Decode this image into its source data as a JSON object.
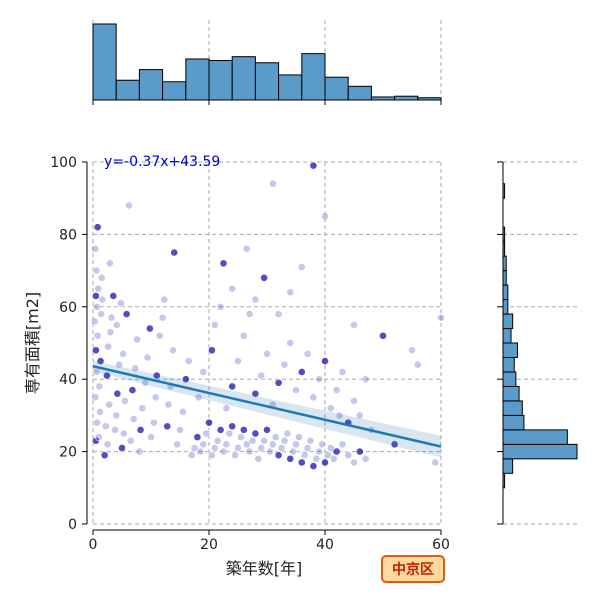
{
  "chart_data": {
    "type": "scatter",
    "xlabel": "築年数[年]",
    "ylabel": "専有面積[m2]",
    "xlim": [
      0,
      60
    ],
    "ylim": [
      0,
      100
    ],
    "xticks": [
      "0",
      "20",
      "40",
      "60"
    ],
    "yticks": [
      "0",
      "20",
      "40",
      "60",
      "80",
      "100"
    ],
    "grid": true,
    "fit": {
      "slope": -0.37,
      "intercept": 43.59,
      "label": "y=-0.37x+43.59"
    },
    "badge": "中京区",
    "marginal_x_hist": {
      "bin_start": 0,
      "bin_width": 4,
      "counts": [
        100,
        26,
        40,
        24,
        54,
        52,
        57,
        49,
        33,
        61,
        30,
        18,
        4,
        5,
        3
      ]
    },
    "marginal_y_hist": {
      "bin_start": 10,
      "bin_width": 4,
      "counts": [
        1,
        6,
        46,
        40,
        13,
        12,
        10,
        8,
        7,
        9,
        5,
        6,
        3,
        3,
        2,
        2,
        1,
        1,
        0,
        0,
        1,
        0,
        0
      ]
    },
    "points": [
      [
        0.5,
        23
      ],
      [
        0.7,
        28
      ],
      [
        0.4,
        35
      ],
      [
        0.6,
        42
      ],
      [
        0.5,
        48
      ],
      [
        0.8,
        52
      ],
      [
        0.3,
        56
      ],
      [
        0.7,
        60
      ],
      [
        0.5,
        63
      ],
      [
        0.9,
        65
      ],
      [
        0.6,
        70
      ],
      [
        0.4,
        76
      ],
      [
        0.8,
        82
      ],
      [
        1,
        24
      ],
      [
        1.2,
        31
      ],
      [
        1.1,
        38
      ],
      [
        1.3,
        45
      ],
      [
        1.4,
        58
      ],
      [
        1.6,
        62
      ],
      [
        1.5,
        68
      ],
      [
        2,
        19
      ],
      [
        2.5,
        22
      ],
      [
        2.2,
        27
      ],
      [
        2.8,
        33
      ],
      [
        2.4,
        41
      ],
      [
        2.6,
        49
      ],
      [
        3,
        53
      ],
      [
        3.2,
        57
      ],
      [
        3.5,
        63
      ],
      [
        2.9,
        72
      ],
      [
        3.8,
        26
      ],
      [
        4,
        30
      ],
      [
        4.2,
        36
      ],
      [
        4.5,
        44
      ],
      [
        4.1,
        55
      ],
      [
        4.8,
        61
      ],
      [
        5,
        21
      ],
      [
        5.3,
        25
      ],
      [
        5.5,
        34
      ],
      [
        5.2,
        47
      ],
      [
        5.8,
        58
      ],
      [
        6.2,
        88
      ],
      [
        6.5,
        23
      ],
      [
        7,
        29
      ],
      [
        6.8,
        37
      ],
      [
        7.3,
        43
      ],
      [
        7.6,
        51
      ],
      [
        8,
        20
      ],
      [
        8.2,
        26
      ],
      [
        8.5,
        32
      ],
      [
        9,
        39
      ],
      [
        9.4,
        46
      ],
      [
        9.8,
        54
      ],
      [
        10,
        24
      ],
      [
        10.5,
        28
      ],
      [
        10.8,
        35
      ],
      [
        11,
        41
      ],
      [
        11.5,
        52
      ],
      [
        12,
        57
      ],
      [
        12.3,
        62
      ],
      [
        12.8,
        27
      ],
      [
        13,
        33
      ],
      [
        13.4,
        38
      ],
      [
        13.8,
        48
      ],
      [
        14,
        75
      ],
      [
        14.5,
        22
      ],
      [
        15,
        26
      ],
      [
        15.5,
        31
      ],
      [
        16,
        40
      ],
      [
        16.5,
        45
      ],
      [
        17,
        19
      ],
      [
        17.5,
        21
      ],
      [
        18,
        24
      ],
      [
        18.5,
        20
      ],
      [
        19,
        22
      ],
      [
        19.5,
        25
      ],
      [
        20,
        28
      ],
      [
        20.5,
        19
      ],
      [
        21,
        21
      ],
      [
        21.5,
        23
      ],
      [
        22,
        26
      ],
      [
        22.5,
        20
      ],
      [
        23,
        22
      ],
      [
        23.5,
        25
      ],
      [
        24,
        27
      ],
      [
        24.5,
        19
      ],
      [
        25,
        21
      ],
      [
        25.5,
        24
      ],
      [
        26,
        26
      ],
      [
        26.5,
        22
      ],
      [
        27,
        20
      ],
      [
        27.5,
        23
      ],
      [
        28,
        25
      ],
      [
        28.5,
        18
      ],
      [
        29,
        21
      ],
      [
        29.5,
        23
      ],
      [
        30,
        26
      ],
      [
        30.5,
        20
      ],
      [
        31,
        22
      ],
      [
        31.5,
        24
      ],
      [
        32,
        19
      ],
      [
        32.5,
        21
      ],
      [
        33,
        23
      ],
      [
        33.5,
        25
      ],
      [
        34,
        18
      ],
      [
        34.5,
        20
      ],
      [
        35,
        22
      ],
      [
        35.5,
        24
      ],
      [
        36,
        17
      ],
      [
        36.5,
        19
      ],
      [
        37,
        21
      ],
      [
        37.5,
        23
      ],
      [
        38,
        16
      ],
      [
        38.5,
        18
      ],
      [
        39,
        20
      ],
      [
        39.5,
        22
      ],
      [
        40,
        17
      ],
      [
        40.5,
        19
      ],
      [
        41,
        21
      ],
      [
        41.5,
        18
      ],
      [
        42,
        20
      ],
      [
        43,
        22
      ],
      [
        44,
        19
      ],
      [
        45,
        17
      ],
      [
        46,
        20
      ],
      [
        47,
        18
      ],
      [
        18.2,
        35
      ],
      [
        19,
        42
      ],
      [
        20.5,
        48
      ],
      [
        21,
        55
      ],
      [
        22,
        60
      ],
      [
        23,
        32
      ],
      [
        24,
        38
      ],
      [
        25,
        45
      ],
      [
        26,
        52
      ],
      [
        27,
        58
      ],
      [
        28,
        36
      ],
      [
        29,
        41
      ],
      [
        30,
        47
      ],
      [
        31,
        33
      ],
      [
        32,
        39
      ],
      [
        33,
        44
      ],
      [
        34,
        50
      ],
      [
        35,
        37
      ],
      [
        36,
        42
      ],
      [
        37,
        47
      ],
      [
        38,
        35
      ],
      [
        39,
        40
      ],
      [
        40,
        45
      ],
      [
        41,
        32
      ],
      [
        42,
        37
      ],
      [
        43,
        42
      ],
      [
        44,
        28
      ],
      [
        45,
        34
      ],
      [
        46,
        30
      ],
      [
        48,
        26
      ],
      [
        22.5,
        72
      ],
      [
        24,
        65
      ],
      [
        26.5,
        76
      ],
      [
        28,
        62
      ],
      [
        29.5,
        68
      ],
      [
        32,
        58
      ],
      [
        34,
        64
      ],
      [
        36,
        71
      ],
      [
        38,
        99
      ],
      [
        40,
        85
      ],
      [
        31,
        94
      ],
      [
        45,
        55
      ],
      [
        50,
        52
      ],
      [
        55,
        48
      ],
      [
        60,
        57
      ],
      [
        59,
        17
      ],
      [
        52,
        22
      ],
      [
        56,
        44
      ],
      [
        42.5,
        30
      ],
      [
        47,
        40
      ]
    ]
  }
}
